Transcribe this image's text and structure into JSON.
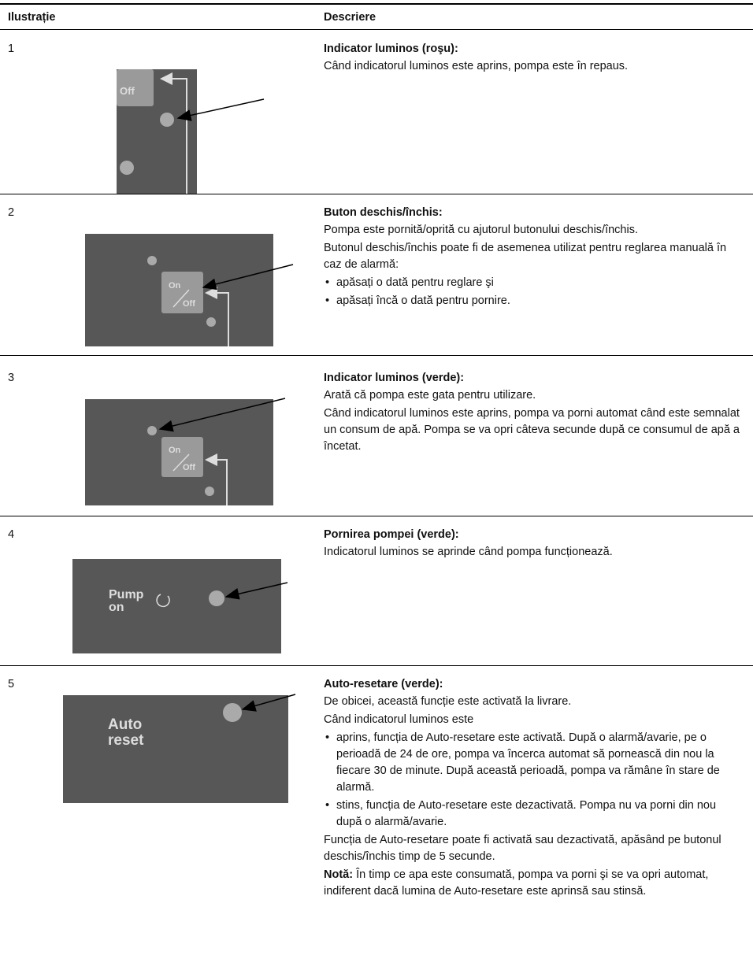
{
  "header": {
    "col1": "Ilustrație",
    "col2": "Descriere"
  },
  "rows": [
    {
      "number": "1",
      "illustration": {
        "labels": [
          "Off"
        ]
      },
      "title": "Indicator luminos (roşu):",
      "blocks": [
        {
          "text": "Când indicatorul luminos este aprins, pompa este în repaus."
        }
      ]
    },
    {
      "number": "2",
      "illustration": {
        "labels": [
          "On",
          "Off"
        ]
      },
      "title": "Buton deschis/închis:",
      "blocks": [
        {
          "text": "Pompa este pornită/oprită cu ajutorul butonului deschis/închis."
        },
        {
          "text": "Butonul deschis/închis poate fi de asemenea utilizat pentru reglarea manuală în caz de alarmă:"
        },
        {
          "bullets": [
            "apăsați o dată pentru reglare şi",
            "apăsați încă o dată pentru pornire."
          ]
        }
      ]
    },
    {
      "number": "3",
      "illustration": {
        "labels": [
          "On",
          "Off"
        ]
      },
      "title": "Indicator luminos (verde):",
      "blocks": [
        {
          "text": "Arată că pompa este gata pentru utilizare."
        },
        {
          "text": "Când indicatorul luminos este aprins, pompa va porni automat când este semnalat un consum de apă. Pompa se va opri câteva secunde după ce consumul de apă a încetat."
        }
      ]
    },
    {
      "number": "4",
      "illustration": {
        "labels": [
          "Pump",
          "on"
        ]
      },
      "title": "Pornirea pompei (verde):",
      "blocks": [
        {
          "text": "Indicatorul luminos se aprinde când pompa funcționează."
        }
      ]
    },
    {
      "number": "5",
      "illustration": {
        "labels": [
          "Auto",
          "reset"
        ]
      },
      "title": "Auto-resetare (verde):",
      "blocks": [
        {
          "text": "De obicei, această funcție este activată la livrare."
        },
        {
          "text": "Când indicatorul luminos este"
        },
        {
          "bullets": [
            "aprins, funcția de Auto-resetare este activată. După o alarmă/avarie, pe o perioadă de 24 de ore, pompa va încerca automat să pornească din nou la fiecare 30 de minute. După această perioadă, pompa va rămâne în stare de alarmă.",
            "stins, funcția de Auto-resetare este dezactivată. Pompa nu va porni din nou după o alarmă/avarie."
          ]
        },
        {
          "text": "Funcția de Auto-resetare poate fi activată sau dezactivată, apăsând pe butonul deschis/închis timp de 5 secunde."
        },
        {
          "label": "Notă:",
          "text": "În timp ce apa este consumată, pompa va porni şi se va opri automat, indiferent dacă lumina de Auto-resetare este aprinsă sau stinsă."
        }
      ]
    }
  ]
}
